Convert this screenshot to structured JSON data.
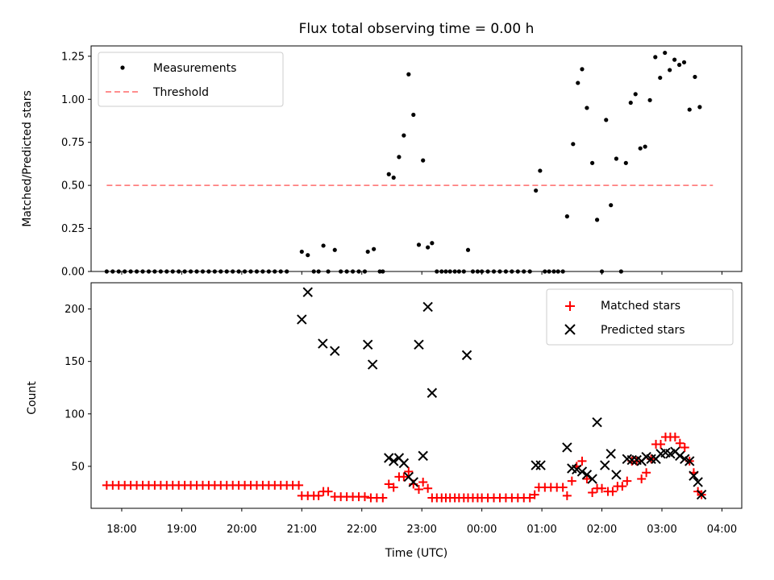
{
  "chart_data": [
    {
      "type": "scatter",
      "title": "Flux total observing time = 0.00 h",
      "xlabel": "",
      "ylabel": "Matched/Predicted stars",
      "xlim": [
        -0.51,
        10.33
      ],
      "ylim": [
        0,
        1.31
      ],
      "yticks": [
        0,
        0.25,
        0.5,
        0.75,
        1.0,
        1.25
      ],
      "ytick_labels": [
        "0.00",
        "0.25",
        "0.50",
        "0.75",
        "1.00",
        "1.25"
      ],
      "threshold": {
        "name": "Threshold",
        "value": 0.5,
        "x_range": [
          -0.25,
          9.85
        ],
        "color": "#ff7f7f"
      },
      "series": [
        {
          "name": "Measurements",
          "color": "#000000",
          "marker": "dot",
          "points": [
            [
              -0.25,
              0
            ],
            [
              -0.15,
              0
            ],
            [
              -0.05,
              0
            ],
            [
              0.05,
              0
            ],
            [
              0.15,
              0
            ],
            [
              0.25,
              0
            ],
            [
              0.35,
              0
            ],
            [
              0.45,
              0
            ],
            [
              0.55,
              0
            ],
            [
              0.65,
              0
            ],
            [
              0.75,
              0
            ],
            [
              0.85,
              0
            ],
            [
              0.95,
              0
            ],
            [
              1.05,
              0
            ],
            [
              1.15,
              0
            ],
            [
              1.25,
              0
            ],
            [
              1.35,
              0
            ],
            [
              1.45,
              0
            ],
            [
              1.55,
              0
            ],
            [
              1.65,
              0
            ],
            [
              1.75,
              0
            ],
            [
              1.85,
              0
            ],
            [
              1.95,
              0
            ],
            [
              2.05,
              0
            ],
            [
              2.15,
              0
            ],
            [
              2.25,
              0
            ],
            [
              2.35,
              0
            ],
            [
              2.45,
              0
            ],
            [
              2.55,
              0
            ],
            [
              2.65,
              0
            ],
            [
              2.75,
              0
            ],
            [
              3.0,
              0.115
            ],
            [
              3.1,
              0.095
            ],
            [
              3.2,
              0
            ],
            [
              3.28,
              0
            ],
            [
              3.36,
              0.15
            ],
            [
              3.44,
              0
            ],
            [
              3.55,
              0.125
            ],
            [
              3.65,
              0
            ],
            [
              3.75,
              0
            ],
            [
              3.85,
              0
            ],
            [
              3.95,
              0
            ],
            [
              4.05,
              0
            ],
            [
              4.1,
              0.115
            ],
            [
              4.2,
              0.13
            ],
            [
              4.3,
              0
            ],
            [
              4.35,
              0
            ],
            [
              4.45,
              0.565
            ],
            [
              4.53,
              0.545
            ],
            [
              4.62,
              0.665
            ],
            [
              4.7,
              0.79
            ],
            [
              4.78,
              1.145
            ],
            [
              4.86,
              0.91
            ],
            [
              4.95,
              0.155
            ],
            [
              5.02,
              0.645
            ],
            [
              5.1,
              0.14
            ],
            [
              5.17,
              0.165
            ],
            [
              5.25,
              0
            ],
            [
              5.33,
              0
            ],
            [
              5.4,
              0
            ],
            [
              5.47,
              0
            ],
            [
              5.55,
              0
            ],
            [
              5.62,
              0
            ],
            [
              5.7,
              0
            ],
            [
              5.77,
              0.125
            ],
            [
              5.85,
              0
            ],
            [
              5.93,
              0
            ],
            [
              6.0,
              0
            ],
            [
              6.1,
              0
            ],
            [
              6.2,
              0
            ],
            [
              6.3,
              0
            ],
            [
              6.4,
              0
            ],
            [
              6.5,
              0
            ],
            [
              6.6,
              0
            ],
            [
              6.7,
              0
            ],
            [
              6.8,
              0
            ],
            [
              6.9,
              0.47
            ],
            [
              6.97,
              0.585
            ],
            [
              7.05,
              0
            ],
            [
              7.12,
              0
            ],
            [
              7.2,
              0
            ],
            [
              7.27,
              0
            ],
            [
              7.35,
              0
            ],
            [
              7.42,
              0.32
            ],
            [
              7.52,
              0.74
            ],
            [
              7.6,
              1.095
            ],
            [
              7.67,
              1.175
            ],
            [
              7.75,
              0.95
            ],
            [
              7.84,
              0.63
            ],
            [
              7.92,
              0.3
            ],
            [
              8.0,
              0
            ],
            [
              8.07,
              0.88
            ],
            [
              8.15,
              0.385
            ],
            [
              8.24,
              0.655
            ],
            [
              8.32,
              0
            ],
            [
              8.4,
              0.63
            ],
            [
              8.48,
              0.98
            ],
            [
              8.56,
              1.03
            ],
            [
              8.64,
              0.715
            ],
            [
              8.72,
              0.725
            ],
            [
              8.8,
              0.995
            ],
            [
              8.89,
              1.245
            ],
            [
              8.97,
              1.125
            ],
            [
              9.05,
              1.27
            ],
            [
              9.13,
              1.17
            ],
            [
              9.21,
              1.23
            ],
            [
              9.29,
              1.2
            ],
            [
              9.37,
              1.215
            ],
            [
              9.46,
              0.94
            ],
            [
              9.55,
              1.13
            ],
            [
              9.63,
              0.955
            ]
          ]
        }
      ],
      "legend": {
        "location": "upper-left",
        "entries": [
          "Measurements",
          "Threshold"
        ]
      }
    },
    {
      "type": "scatter",
      "title": "",
      "xlabel": "Time (UTC)",
      "ylabel": "Count",
      "xlim": [
        -0.51,
        10.33
      ],
      "ylim": [
        10,
        225
      ],
      "xticks": [
        0,
        1,
        2,
        3,
        4,
        5,
        6,
        7,
        8,
        9,
        10
      ],
      "xtick_labels": [
        "18:00",
        "19:00",
        "20:00",
        "21:00",
        "22:00",
        "23:00",
        "00:00",
        "01:00",
        "02:00",
        "03:00",
        "04:00"
      ],
      "yticks": [
        50,
        100,
        150,
        200
      ],
      "ytick_labels": [
        "50",
        "100",
        "150",
        "200"
      ],
      "series": [
        {
          "name": "Matched stars",
          "color": "#ff0000",
          "marker": "plus",
          "points": [
            [
              -0.25,
              32
            ],
            [
              -0.15,
              32
            ],
            [
              -0.05,
              32
            ],
            [
              0.05,
              32
            ],
            [
              0.15,
              32
            ],
            [
              0.25,
              32
            ],
            [
              0.35,
              32
            ],
            [
              0.45,
              32
            ],
            [
              0.55,
              32
            ],
            [
              0.65,
              32
            ],
            [
              0.75,
              32
            ],
            [
              0.85,
              32
            ],
            [
              0.95,
              32
            ],
            [
              1.05,
              32
            ],
            [
              1.15,
              32
            ],
            [
              1.25,
              32
            ],
            [
              1.35,
              32
            ],
            [
              1.45,
              32
            ],
            [
              1.55,
              32
            ],
            [
              1.65,
              32
            ],
            [
              1.75,
              32
            ],
            [
              1.85,
              32
            ],
            [
              1.95,
              32
            ],
            [
              2.05,
              32
            ],
            [
              2.15,
              32
            ],
            [
              2.25,
              32
            ],
            [
              2.35,
              32
            ],
            [
              2.45,
              32
            ],
            [
              2.55,
              32
            ],
            [
              2.65,
              32
            ],
            [
              2.75,
              32
            ],
            [
              2.85,
              32
            ],
            [
              2.95,
              32
            ],
            [
              3.0,
              22
            ],
            [
              3.1,
              22
            ],
            [
              3.2,
              22
            ],
            [
              3.28,
              22
            ],
            [
              3.36,
              26
            ],
            [
              3.44,
              26
            ],
            [
              3.55,
              21
            ],
            [
              3.65,
              21
            ],
            [
              3.75,
              21
            ],
            [
              3.85,
              21
            ],
            [
              3.95,
              21
            ],
            [
              4.05,
              21
            ],
            [
              4.15,
              20
            ],
            [
              4.25,
              20
            ],
            [
              4.35,
              20
            ],
            [
              4.45,
              33
            ],
            [
              4.53,
              30
            ],
            [
              4.62,
              40
            ],
            [
              4.7,
              40
            ],
            [
              4.78,
              45
            ],
            [
              4.86,
              33
            ],
            [
              4.95,
              28
            ],
            [
              5.02,
              35
            ],
            [
              5.1,
              29
            ],
            [
              5.17,
              20
            ],
            [
              5.25,
              20
            ],
            [
              5.33,
              20
            ],
            [
              5.4,
              20
            ],
            [
              5.47,
              20
            ],
            [
              5.55,
              20
            ],
            [
              5.62,
              20
            ],
            [
              5.7,
              20
            ],
            [
              5.77,
              20
            ],
            [
              5.85,
              20
            ],
            [
              5.93,
              20
            ],
            [
              6.0,
              20
            ],
            [
              6.1,
              20
            ],
            [
              6.2,
              20
            ],
            [
              6.3,
              20
            ],
            [
              6.4,
              20
            ],
            [
              6.5,
              20
            ],
            [
              6.6,
              20
            ],
            [
              6.7,
              20
            ],
            [
              6.8,
              20
            ],
            [
              6.88,
              23
            ],
            [
              6.95,
              30
            ],
            [
              7.05,
              30
            ],
            [
              7.15,
              30
            ],
            [
              7.25,
              30
            ],
            [
              7.35,
              30
            ],
            [
              7.42,
              22
            ],
            [
              7.5,
              36
            ],
            [
              7.58,
              50
            ],
            [
              7.67,
              55
            ],
            [
              7.75,
              38
            ],
            [
              7.84,
              25
            ],
            [
              7.92,
              29
            ],
            [
              8.0,
              29
            ],
            [
              8.1,
              26
            ],
            [
              8.18,
              26
            ],
            [
              8.26,
              31
            ],
            [
              8.34,
              31
            ],
            [
              8.42,
              36
            ],
            [
              8.5,
              55
            ],
            [
              8.58,
              55
            ],
            [
              8.66,
              38
            ],
            [
              8.74,
              44
            ],
            [
              8.82,
              57
            ],
            [
              8.9,
              71
            ],
            [
              8.98,
              71
            ],
            [
              9.06,
              78
            ],
            [
              9.14,
              78
            ],
            [
              9.22,
              78
            ],
            [
              9.3,
              72
            ],
            [
              9.38,
              68
            ],
            [
              9.46,
              55
            ],
            [
              9.53,
              44
            ],
            [
              9.6,
              26
            ],
            [
              9.66,
              23
            ]
          ]
        },
        {
          "name": "Predicted stars",
          "color": "#000000",
          "marker": "x",
          "points": [
            [
              3.0,
              190
            ],
            [
              3.1,
              216
            ],
            [
              3.35,
              167
            ],
            [
              3.55,
              160
            ],
            [
              4.1,
              166
            ],
            [
              4.18,
              147
            ],
            [
              4.45,
              58
            ],
            [
              4.53,
              55
            ],
            [
              4.62,
              58
            ],
            [
              4.7,
              53
            ],
            [
              4.78,
              40
            ],
            [
              4.86,
              35
            ],
            [
              4.95,
              166
            ],
            [
              5.02,
              60
            ],
            [
              5.1,
              202
            ],
            [
              5.17,
              120
            ],
            [
              5.75,
              156
            ],
            [
              6.9,
              51
            ],
            [
              6.98,
              51
            ],
            [
              7.42,
              68
            ],
            [
              7.5,
              48
            ],
            [
              7.58,
              47
            ],
            [
              7.67,
              45
            ],
            [
              7.75,
              42
            ],
            [
              7.84,
              38
            ],
            [
              7.92,
              92
            ],
            [
              8.05,
              51
            ],
            [
              8.15,
              62
            ],
            [
              8.24,
              42
            ],
            [
              8.42,
              57
            ],
            [
              8.5,
              56
            ],
            [
              8.58,
              56
            ],
            [
              8.66,
              55
            ],
            [
              8.74,
              59
            ],
            [
              8.82,
              57
            ],
            [
              8.9,
              57
            ],
            [
              8.98,
              62
            ],
            [
              9.06,
              63
            ],
            [
              9.14,
              62
            ],
            [
              9.22,
              64
            ],
            [
              9.3,
              60
            ],
            [
              9.38,
              57
            ],
            [
              9.46,
              55
            ],
            [
              9.53,
              41
            ],
            [
              9.6,
              35
            ],
            [
              9.66,
              23
            ]
          ]
        }
      ],
      "legend": {
        "location": "upper-right",
        "entries": [
          "Matched stars",
          "Predicted stars"
        ]
      }
    }
  ]
}
